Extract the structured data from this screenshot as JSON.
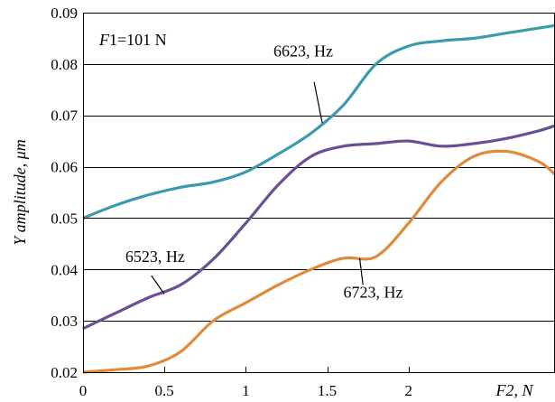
{
  "chart_data": {
    "type": "line",
    "title": "",
    "xlabel": "F2, N",
    "ylabel": "Y amplitude, μm",
    "xlim": [
      0,
      2.9
    ],
    "ylim": [
      0.02,
      0.09
    ],
    "xticks": [
      0,
      0.5,
      1,
      1.5,
      2
    ],
    "xtick_labels": [
      "0",
      "0.5",
      "1",
      "1.5",
      "2"
    ],
    "yticks": [
      0.02,
      0.03,
      0.04,
      0.05,
      0.06,
      0.07,
      0.08,
      0.09
    ],
    "ytick_labels": [
      "0.02",
      "0.03",
      "0.04",
      "0.05",
      "0.06",
      "0.07",
      "0.08",
      "0.09"
    ],
    "grid": "horizontal",
    "legend": "none",
    "series": [
      {
        "label": "6623, Hz",
        "color": "#3a9aae",
        "x": [
          0,
          0.2,
          0.4,
          0.6,
          0.8,
          1.0,
          1.2,
          1.4,
          1.6,
          1.8,
          2.0,
          2.2,
          2.4,
          2.6,
          2.8,
          2.9
        ],
        "y": [
          0.05,
          0.0525,
          0.0545,
          0.056,
          0.057,
          0.059,
          0.0625,
          0.0665,
          0.072,
          0.08,
          0.0835,
          0.0845,
          0.085,
          0.086,
          0.087,
          0.0875
        ]
      },
      {
        "label": "6523, Hz",
        "color": "#6b4f95",
        "x": [
          0,
          0.2,
          0.4,
          0.6,
          0.8,
          1.0,
          1.2,
          1.4,
          1.6,
          1.8,
          2.0,
          2.2,
          2.4,
          2.6,
          2.8,
          2.9
        ],
        "y": [
          0.0285,
          0.0315,
          0.0345,
          0.037,
          0.042,
          0.049,
          0.0565,
          0.062,
          0.064,
          0.0645,
          0.065,
          0.064,
          0.0645,
          0.0655,
          0.067,
          0.068
        ]
      },
      {
        "label": "6723, Hz",
        "color": "#e08a3c",
        "x": [
          0,
          0.2,
          0.4,
          0.6,
          0.8,
          1.0,
          1.2,
          1.4,
          1.6,
          1.8,
          2.0,
          2.2,
          2.4,
          2.6,
          2.8,
          2.9
        ],
        "y": [
          0.02,
          0.0205,
          0.0212,
          0.024,
          0.03,
          0.0335,
          0.037,
          0.04,
          0.0422,
          0.0425,
          0.049,
          0.057,
          0.062,
          0.063,
          0.061,
          0.0585
        ]
      }
    ],
    "annotations": [
      {
        "text": "6623, Hz",
        "text_x": 1.17,
        "text_y": 0.0815,
        "point_x": 1.47,
        "point_y": 0.0685
      },
      {
        "text": "6523, Hz",
        "text_x": 0.26,
        "text_y": 0.0415,
        "point_x": 0.5,
        "point_y": 0.0352
      },
      {
        "text": "6723, Hz",
        "text_x": 1.6,
        "text_y": 0.0345,
        "point_x": 1.7,
        "point_y": 0.0422
      }
    ],
    "inset_label": {
      "var": "F",
      "rest": "1=101 N"
    }
  }
}
